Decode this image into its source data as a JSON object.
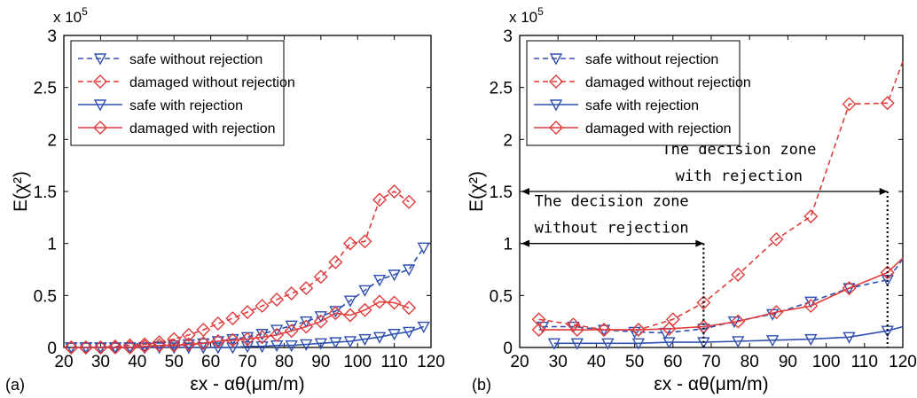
{
  "chart_data": [
    {
      "type": "line",
      "panel_label": "(a)",
      "ylabel": "E(χ²)",
      "xlabel": "εx - αθ(μm/m)",
      "ymultiplier": "x 10^5",
      "xlim": [
        20,
        120
      ],
      "ylim": [
        0,
        3
      ],
      "xticks": [
        "20",
        "30",
        "40",
        "50",
        "60",
        "70",
        "80",
        "90",
        "100",
        "110",
        "120"
      ],
      "yticks": [
        "0",
        "0.5",
        "1",
        "1.5",
        "2",
        "2.5",
        "3"
      ],
      "grid": false,
      "legend_position": "top-left",
      "series": [
        {
          "name": "safe without rejection",
          "color": "#3050b0",
          "dash": true,
          "marker": "triangle-down",
          "x": [
            22,
            26,
            30,
            34,
            38,
            42,
            46,
            50,
            54,
            58,
            62,
            66,
            70,
            74,
            78,
            82,
            86,
            90,
            94,
            98,
            102,
            106,
            110,
            114,
            118
          ],
          "y": [
            0,
            0,
            0,
            0,
            0,
            0,
            0.01,
            0.02,
            0.03,
            0.04,
            0.06,
            0.08,
            0.1,
            0.13,
            0.17,
            0.21,
            0.25,
            0.3,
            0.35,
            0.45,
            0.55,
            0.65,
            0.7,
            0.75,
            0.96
          ]
        },
        {
          "name": "damaged without rejection",
          "color": "#e03c3c",
          "dash": true,
          "marker": "diamond",
          "x": [
            22,
            26,
            30,
            34,
            38,
            42,
            46,
            50,
            54,
            58,
            62,
            66,
            70,
            74,
            78,
            82,
            86,
            90,
            94,
            98,
            102,
            106,
            110,
            114
          ],
          "y": [
            0,
            0,
            0,
            0.01,
            0.02,
            0.03,
            0.05,
            0.08,
            0.12,
            0.17,
            0.23,
            0.28,
            0.34,
            0.4,
            0.46,
            0.52,
            0.57,
            0.68,
            0.82,
            1.0,
            1.02,
            1.42,
            1.5,
            1.4
          ]
        },
        {
          "name": "safe with rejection",
          "color": "#3050b0",
          "dash": false,
          "marker": "triangle-down",
          "x": [
            22,
            26,
            30,
            34,
            38,
            42,
            46,
            50,
            54,
            58,
            62,
            66,
            70,
            74,
            78,
            82,
            86,
            90,
            94,
            98,
            102,
            106,
            110,
            114,
            118
          ],
          "y": [
            0,
            0,
            0,
            0,
            0,
            0,
            0,
            0,
            0,
            0,
            0,
            0,
            0.01,
            0.01,
            0.02,
            0.02,
            0.03,
            0.04,
            0.05,
            0.06,
            0.08,
            0.1,
            0.13,
            0.15,
            0.2
          ]
        },
        {
          "name": "damaged with rejection",
          "color": "#e03c3c",
          "dash": false,
          "marker": "diamond",
          "x": [
            22,
            26,
            30,
            34,
            38,
            42,
            46,
            50,
            54,
            58,
            62,
            66,
            70,
            74,
            78,
            82,
            86,
            90,
            94,
            98,
            102,
            106,
            110,
            114
          ],
          "y": [
            0,
            0,
            0,
            0,
            0,
            0.01,
            0.02,
            0.02,
            0.03,
            0.04,
            0.06,
            0.07,
            0.08,
            0.1,
            0.12,
            0.16,
            0.2,
            0.25,
            0.33,
            0.31,
            0.36,
            0.44,
            0.43,
            0.38
          ]
        }
      ]
    },
    {
      "type": "line",
      "panel_label": "(b)",
      "ylabel": "E(χ²)",
      "xlabel": "εx - αθ(μm/m)",
      "ymultiplier": "x 10^5",
      "xlim": [
        20,
        120
      ],
      "ylim": [
        0,
        3
      ],
      "xticks": [
        "20",
        "30",
        "40",
        "50",
        "60",
        "70",
        "80",
        "90",
        "100",
        "110",
        "120"
      ],
      "yticks": [
        "0",
        "0.5",
        "1",
        "1.5",
        "2",
        "2.5",
        "3"
      ],
      "grid": false,
      "legend_position": "top-left",
      "series": [
        {
          "name": "safe without rejection",
          "color": "#3050b0",
          "dash": true,
          "marker": "triangle-down",
          "x": [
            26,
            34,
            42,
            50,
            58,
            68,
            76,
            86,
            96,
            106,
            116,
            120
          ],
          "y": [
            0.2,
            0.2,
            0.17,
            0.15,
            0.14,
            0.18,
            0.25,
            0.32,
            0.44,
            0.57,
            0.65,
            0.85
          ]
        },
        {
          "name": "damaged without rejection",
          "color": "#e03c3c",
          "dash": true,
          "marker": "diamond",
          "x": [
            25,
            34,
            42,
            51,
            60,
            68,
            77,
            87,
            96,
            106,
            116,
            120
          ],
          "y": [
            0.27,
            0.22,
            0.17,
            0.17,
            0.27,
            0.43,
            0.7,
            1.04,
            1.26,
            2.34,
            2.35,
            2.75
          ]
        },
        {
          "name": "safe with rejection",
          "color": "#3050b0",
          "dash": false,
          "marker": "triangle-down",
          "x": [
            29,
            35,
            43,
            51,
            59,
            68,
            77,
            86,
            96,
            106,
            116,
            120
          ],
          "y": [
            0.04,
            0.04,
            0.04,
            0.04,
            0.05,
            0.05,
            0.06,
            0.07,
            0.08,
            0.1,
            0.16,
            0.2
          ]
        },
        {
          "name": "damaged with rejection",
          "color": "#e03c3c",
          "dash": false,
          "marker": "diamond",
          "x": [
            25,
            35,
            42,
            51,
            59,
            68,
            77,
            87,
            96,
            106,
            116,
            120
          ],
          "y": [
            0.17,
            0.17,
            0.17,
            0.17,
            0.18,
            0.2,
            0.25,
            0.34,
            0.4,
            0.57,
            0.72,
            0.86
          ]
        }
      ],
      "annotations": [
        {
          "text_line1": "The decision zone",
          "text_line2": "without rejection",
          "x_from": 20,
          "x_to": 68,
          "y": 1.0
        },
        {
          "text_line1": "The decision zone",
          "text_line2": "with rejection",
          "x_from": 20,
          "x_to": 116,
          "y": 1.5
        }
      ]
    }
  ]
}
